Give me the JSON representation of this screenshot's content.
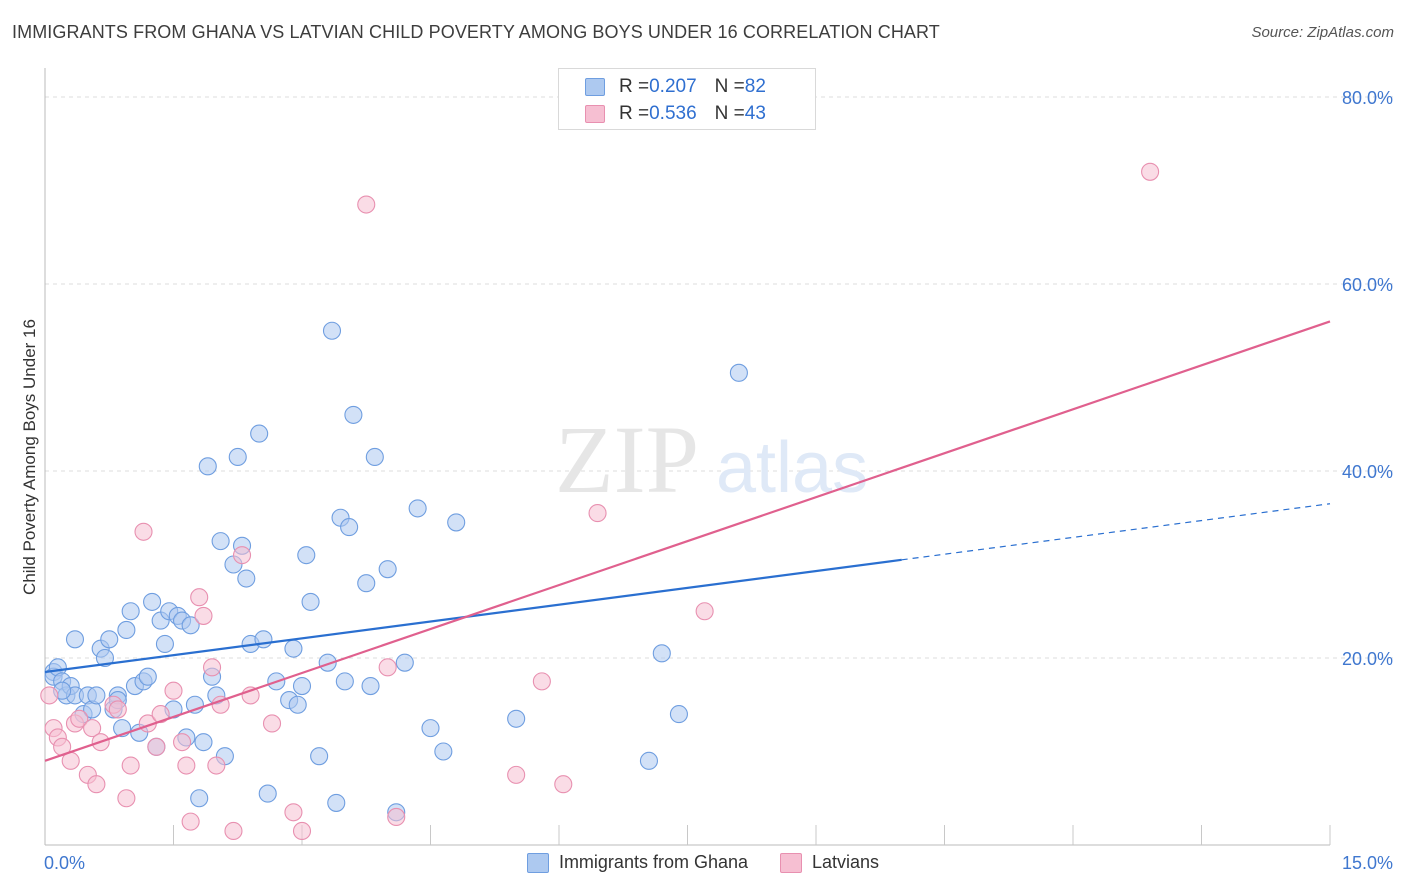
{
  "header": {
    "title": "IMMIGRANTS FROM GHANA VS LATVIAN CHILD POVERTY AMONG BOYS UNDER 16 CORRELATION CHART",
    "source": "Source: ZipAtlas.com"
  },
  "watermark": {
    "zip": "ZIP",
    "atlas": "atlas"
  },
  "legend": {
    "row1": {
      "r_label": "R = ",
      "r_value": "0.207",
      "n_label": "N = ",
      "n_value": "82"
    },
    "row2": {
      "r_label": "R = ",
      "r_value": "0.536",
      "n_label": "N = ",
      "n_value": "43"
    }
  },
  "colors": {
    "ghana_fill": "#adc9f0",
    "ghana_stroke": "#6f9ee0",
    "ghana_line": "#2a6fd0",
    "latvian_fill": "#f6bfd2",
    "latvian_stroke": "#e890b0",
    "latvian_line": "#e0608e",
    "axis_text": "#3f77cf",
    "grid": "#dcdcdc"
  },
  "chart_data": {
    "type": "scatter",
    "title": "IMMIGRANTS FROM GHANA VS LATVIAN CHILD POVERTY AMONG BOYS UNDER 16 CORRELATION CHART",
    "xlabel": "",
    "ylabel": "Child Poverty Among Boys Under 16",
    "xlim": [
      0,
      15
    ],
    "ylim": [
      0,
      80
    ],
    "x_ticks": [
      "0.0%",
      "15.0%"
    ],
    "y_ticks": [
      "20.0%",
      "40.0%",
      "60.0%",
      "80.0%"
    ],
    "y_tick_values": [
      20,
      40,
      60,
      80
    ],
    "grid": true,
    "legend_position": "top-center",
    "series": [
      {
        "name": "Immigrants from Ghana",
        "r": 0.207,
        "n": 82,
        "trend": {
          "x0": 0,
          "y0": 18.5,
          "x_solid_end": 10.0,
          "y_solid_end": 30.5,
          "x1": 15,
          "y1": 36.5
        },
        "points": [
          [
            0.1,
            18.5
          ],
          [
            0.1,
            18.0
          ],
          [
            0.15,
            19.0
          ],
          [
            0.2,
            17.5
          ],
          [
            0.25,
            16.0
          ],
          [
            0.3,
            17.0
          ],
          [
            0.35,
            16.0
          ],
          [
            0.35,
            22.0
          ],
          [
            0.45,
            14.0
          ],
          [
            0.5,
            16.0
          ],
          [
            0.55,
            14.5
          ],
          [
            0.6,
            16.0
          ],
          [
            0.65,
            21.0
          ],
          [
            0.7,
            20.0
          ],
          [
            0.75,
            22.0
          ],
          [
            0.8,
            14.5
          ],
          [
            0.85,
            16.0
          ],
          [
            0.85,
            15.5
          ],
          [
            0.9,
            12.5
          ],
          [
            0.95,
            23.0
          ],
          [
            1.0,
            25.0
          ],
          [
            1.05,
            17.0
          ],
          [
            1.1,
            12.0
          ],
          [
            1.15,
            17.5
          ],
          [
            1.2,
            18.0
          ],
          [
            1.25,
            26.0
          ],
          [
            1.3,
            10.5
          ],
          [
            1.35,
            24.0
          ],
          [
            1.4,
            21.5
          ],
          [
            1.45,
            25.0
          ],
          [
            1.5,
            14.5
          ],
          [
            1.55,
            24.5
          ],
          [
            1.6,
            24.0
          ],
          [
            1.65,
            11.5
          ],
          [
            1.7,
            23.5
          ],
          [
            1.75,
            15.0
          ],
          [
            1.8,
            5.0
          ],
          [
            1.85,
            11.0
          ],
          [
            1.9,
            40.5
          ],
          [
            1.95,
            18.0
          ],
          [
            2.0,
            16.0
          ],
          [
            2.05,
            32.5
          ],
          [
            2.1,
            9.5
          ],
          [
            2.2,
            30.0
          ],
          [
            2.25,
            41.5
          ],
          [
            2.3,
            32.0
          ],
          [
            2.35,
            28.5
          ],
          [
            2.4,
            21.5
          ],
          [
            2.5,
            44.0
          ],
          [
            2.55,
            22.0
          ],
          [
            2.6,
            5.5
          ],
          [
            2.7,
            17.5
          ],
          [
            2.85,
            15.5
          ],
          [
            2.9,
            21.0
          ],
          [
            2.95,
            15.0
          ],
          [
            3.0,
            17.0
          ],
          [
            3.05,
            31.0
          ],
          [
            3.1,
            26.0
          ],
          [
            3.2,
            9.5
          ],
          [
            3.3,
            19.5
          ],
          [
            3.35,
            55.0
          ],
          [
            3.4,
            4.5
          ],
          [
            3.45,
            35.0
          ],
          [
            3.5,
            17.5
          ],
          [
            3.55,
            34.0
          ],
          [
            3.6,
            46.0
          ],
          [
            3.75,
            28.0
          ],
          [
            3.8,
            17.0
          ],
          [
            3.85,
            41.5
          ],
          [
            4.0,
            29.5
          ],
          [
            4.1,
            3.5
          ],
          [
            4.2,
            19.5
          ],
          [
            4.35,
            36.0
          ],
          [
            4.5,
            12.5
          ],
          [
            4.65,
            10.0
          ],
          [
            4.8,
            34.5
          ],
          [
            5.5,
            13.5
          ],
          [
            7.05,
            9.0
          ],
          [
            7.2,
            20.5
          ],
          [
            7.4,
            14.0
          ],
          [
            8.1,
            50.5
          ],
          [
            0.2,
            16.5
          ]
        ]
      },
      {
        "name": "Latvians",
        "r": 0.536,
        "n": 43,
        "trend": {
          "x0": 0,
          "y0": 9.0,
          "x1": 15,
          "y1": 56.0
        },
        "points": [
          [
            0.05,
            16.0
          ],
          [
            0.1,
            12.5
          ],
          [
            0.15,
            11.5
          ],
          [
            0.2,
            10.5
          ],
          [
            0.3,
            9.0
          ],
          [
            0.35,
            13.0
          ],
          [
            0.4,
            13.5
          ],
          [
            0.5,
            7.5
          ],
          [
            0.55,
            12.5
          ],
          [
            0.6,
            6.5
          ],
          [
            0.65,
            11.0
          ],
          [
            0.8,
            15.0
          ],
          [
            0.85,
            14.5
          ],
          [
            0.95,
            5.0
          ],
          [
            1.0,
            8.5
          ],
          [
            1.15,
            33.5
          ],
          [
            1.2,
            13.0
          ],
          [
            1.3,
            10.5
          ],
          [
            1.35,
            14.0
          ],
          [
            1.5,
            16.5
          ],
          [
            1.6,
            11.0
          ],
          [
            1.65,
            8.5
          ],
          [
            1.7,
            2.5
          ],
          [
            1.8,
            26.5
          ],
          [
            1.85,
            24.5
          ],
          [
            1.95,
            19.0
          ],
          [
            2.0,
            8.5
          ],
          [
            2.05,
            15.0
          ],
          [
            2.2,
            1.5
          ],
          [
            2.3,
            31.0
          ],
          [
            2.4,
            16.0
          ],
          [
            2.65,
            13.0
          ],
          [
            2.9,
            3.5
          ],
          [
            3.0,
            1.5
          ],
          [
            3.75,
            68.5
          ],
          [
            4.0,
            19.0
          ],
          [
            4.1,
            3.0
          ],
          [
            5.5,
            7.5
          ],
          [
            5.8,
            17.5
          ],
          [
            6.05,
            6.5
          ],
          [
            6.45,
            35.5
          ],
          [
            7.7,
            25.0
          ],
          [
            12.9,
            72.0
          ]
        ]
      }
    ]
  }
}
